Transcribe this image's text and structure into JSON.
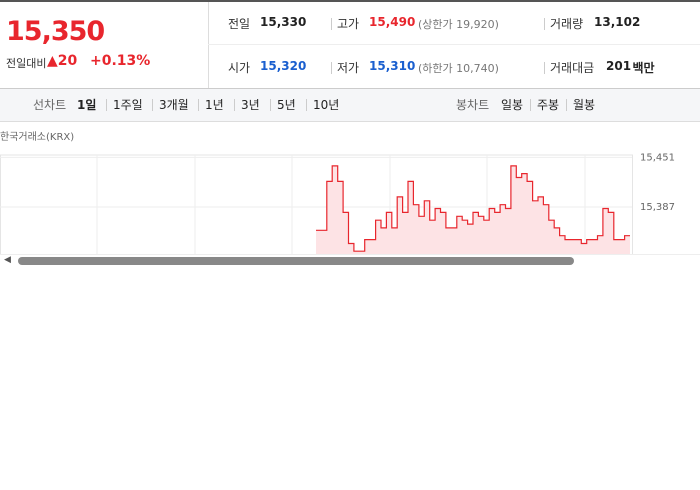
{
  "quote": {
    "price": "15,350",
    "change_label": "전일대비",
    "change": "20",
    "change_rate": "+0.13%"
  },
  "stats": [
    {
      "label": "전일",
      "value": "15,330"
    },
    {
      "label": "고가",
      "value": "15,490",
      "note": "(상한가 19,920)"
    },
    {
      "label": "거래량",
      "value": "13,102"
    },
    {
      "label": "시가",
      "value": "15,320"
    },
    {
      "label": "저가",
      "value": "15,310",
      "note": "(하한가 10,740)"
    },
    {
      "label": "거래대금",
      "value": "201",
      "unit": "백만"
    }
  ],
  "tabs": {
    "line_label": "선차트",
    "line": [
      "1일",
      "1주일",
      "3개월",
      "1년",
      "3년",
      "5년",
      "10년"
    ],
    "candle_label": "봉차트",
    "candle": [
      "일봉",
      "주봉",
      "월봉"
    ]
  },
  "chart_data": {
    "type": "line",
    "source": "한국거래소(KRX)",
    "color": "#e8262d",
    "values": [
      15357,
      15357,
      15420,
      15440,
      15420,
      15380,
      15340,
      15330,
      15330,
      15345,
      15345,
      15370,
      15360,
      15380,
      15360,
      15400,
      15380,
      15420,
      15390,
      15375,
      15395,
      15370,
      15385,
      15380,
      15360,
      15360,
      15375,
      15370,
      15365,
      15380,
      15375,
      15370,
      15385,
      15380,
      15390,
      15385,
      15440,
      15425,
      15430,
      15420,
      15395,
      15400,
      15390,
      15370,
      15360,
      15350,
      15345,
      15345,
      15345,
      15340,
      15345,
      15345,
      15350,
      15385,
      15380,
      15345,
      15345,
      15350,
      15350
    ],
    "ylim": [
      15329,
      15454
    ],
    "yticks": [
      {
        "value": 15451,
        "label": "15,451"
      },
      {
        "value": 15387,
        "label": "15,387"
      }
    ],
    "grid": true
  }
}
